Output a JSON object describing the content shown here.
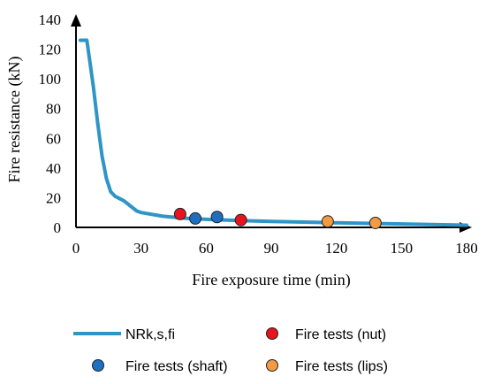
{
  "chart_data": {
    "type": "line+scatter",
    "xlabel": "Fire exposure time (min)",
    "ylabel": "Fire resistance (kN)",
    "xlim": [
      0,
      180
    ],
    "ylim": [
      0,
      140
    ],
    "xticks": [
      "0",
      "30",
      "60",
      "90",
      "120",
      "150",
      "180"
    ],
    "yticks": [
      "0",
      "20",
      "40",
      "60",
      "80",
      "100",
      "120",
      "140"
    ],
    "legend_position": "bottom",
    "series": [
      {
        "name": "NRk,s,fi",
        "kind": "line",
        "color": "#2e95c6",
        "x": [
          2,
          5,
          8,
          10,
          12,
          14,
          16,
          18,
          22,
          28,
          30,
          40,
          50,
          60,
          75,
          90,
          110,
          130,
          150,
          180
        ],
        "y": [
          126,
          126,
          95,
          70,
          48,
          33,
          24,
          21,
          18,
          11,
          10,
          7.5,
          6.2,
          5.4,
          4.6,
          4,
          3.4,
          2.8,
          2.3,
          1.5
        ]
      },
      {
        "name": "Fire tests (nut)",
        "kind": "scatter",
        "color": "#e8141d",
        "x": [
          48,
          76
        ],
        "y": [
          9,
          5
        ]
      },
      {
        "name": "Fire tests (shaft)",
        "kind": "scatter",
        "color": "#1f6fc1",
        "x": [
          55,
          65
        ],
        "y": [
          6,
          7
        ]
      },
      {
        "name": "Fire tests (lips)",
        "kind": "scatter",
        "color": "#f39a44",
        "x": [
          116,
          138
        ],
        "y": [
          4,
          3
        ]
      }
    ]
  }
}
